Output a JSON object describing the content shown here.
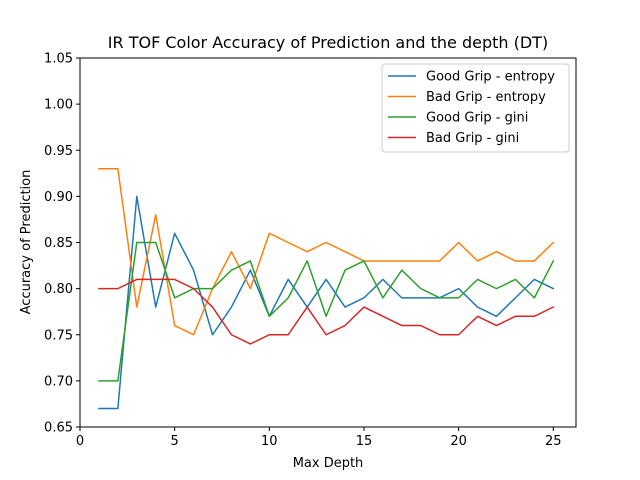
{
  "chart_data": {
    "type": "line",
    "title": "IR TOF Color Accuracy of Prediction and the depth (DT)",
    "xlabel": "Max Depth",
    "ylabel": "Accuracy of Prediction",
    "xlim": [
      0,
      26.2
    ],
    "ylim": [
      0.65,
      1.05
    ],
    "xticks": [
      0,
      5,
      10,
      15,
      20,
      25
    ],
    "yticks": [
      0.65,
      0.7,
      0.75,
      0.8,
      0.85,
      0.9,
      0.95,
      1.0,
      1.05
    ],
    "xtick_labels": [
      "0",
      "5",
      "10",
      "15",
      "20",
      "25"
    ],
    "ytick_labels": [
      "0.65",
      "0.70",
      "0.75",
      "0.80",
      "0.85",
      "0.90",
      "0.95",
      "1.00",
      "1.05"
    ],
    "grid": false,
    "legend_position": "top-right",
    "x": [
      1,
      2,
      3,
      4,
      5,
      6,
      7,
      8,
      9,
      10,
      11,
      12,
      13,
      14,
      15,
      16,
      17,
      18,
      19,
      20,
      21,
      22,
      23,
      24,
      25
    ],
    "series": [
      {
        "name": "Good Grip - entropy",
        "color": "#1f77b4",
        "values": [
          0.67,
          0.67,
          0.9,
          0.78,
          0.86,
          0.82,
          0.75,
          0.78,
          0.82,
          0.77,
          0.81,
          0.78,
          0.81,
          0.78,
          0.79,
          0.81,
          0.79,
          0.79,
          0.79,
          0.8,
          0.78,
          0.77,
          0.79,
          0.81,
          0.8
        ]
      },
      {
        "name": "Bad Grip - entropy",
        "color": "#ff7f0e",
        "values": [
          0.93,
          0.93,
          0.78,
          0.88,
          0.76,
          0.75,
          0.8,
          0.84,
          0.8,
          0.86,
          0.85,
          0.84,
          0.85,
          0.84,
          0.83,
          0.83,
          0.83,
          0.83,
          0.83,
          0.85,
          0.83,
          0.84,
          0.83,
          0.83,
          0.85
        ]
      },
      {
        "name": "Good Grip - gini",
        "color": "#2ca02c",
        "values": [
          0.7,
          0.7,
          0.85,
          0.85,
          0.79,
          0.8,
          0.8,
          0.82,
          0.83,
          0.77,
          0.79,
          0.83,
          0.77,
          0.82,
          0.83,
          0.79,
          0.82,
          0.8,
          0.79,
          0.79,
          0.81,
          0.8,
          0.81,
          0.79,
          0.83
        ]
      },
      {
        "name": "Bad Grip - gini",
        "color": "#d62728",
        "values": [
          0.8,
          0.8,
          0.81,
          0.81,
          0.81,
          0.8,
          0.78,
          0.75,
          0.74,
          0.75,
          0.75,
          0.78,
          0.75,
          0.76,
          0.78,
          0.77,
          0.76,
          0.76,
          0.75,
          0.75,
          0.77,
          0.76,
          0.77,
          0.77,
          0.78
        ]
      }
    ]
  }
}
